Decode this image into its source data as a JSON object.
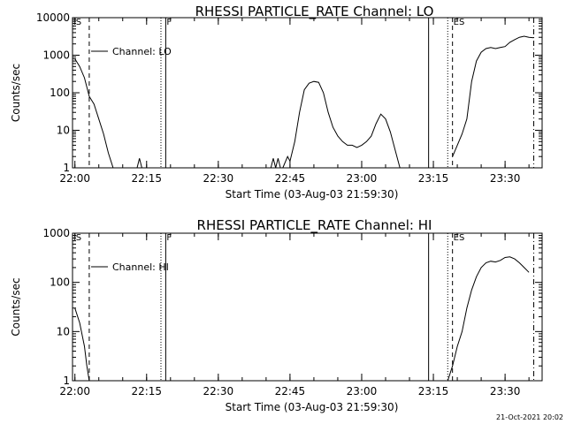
{
  "chart_data": [
    {
      "type": "line",
      "title": "RHESSI PARTICLE_RATE Channel: LO",
      "xlabel": "Start Time (03-Aug-03 21:59:30)",
      "ylabel": "Counts/sec",
      "yscale": "log",
      "ylim": [
        1,
        10000
      ],
      "xlim": [
        "21:59:30",
        "23:37:45"
      ],
      "xticks": [
        "22:00",
        "22:15",
        "22:30",
        "22:45",
        "23:00",
        "23:15",
        "23:30"
      ],
      "yticks": [
        "1",
        "10",
        "100",
        "1000",
        "10000"
      ],
      "legend": {
        "label": "Channel: LO",
        "placement": "top-left"
      },
      "events": [
        {
          "label": "S",
          "time": "22:00",
          "style": "none"
        },
        {
          "time": "22:03",
          "style": "dashed"
        },
        {
          "time": "22:18",
          "style": "dotted"
        },
        {
          "label": "F",
          "time": "22:19",
          "style": "solid"
        },
        {
          "time": "23:14",
          "style": "solid"
        },
        {
          "time": "23:18",
          "style": "dotted"
        },
        {
          "label": "ES",
          "time": "23:19",
          "style": "dashed"
        },
        {
          "time": "23:36",
          "style": "dashdot"
        }
      ],
      "series": [
        {
          "segments": [
            [
              [
                "22:00",
                800
              ],
              [
                "22:01",
                500
              ],
              [
                "22:02",
                250
              ],
              [
                "22:03",
                80
              ],
              [
                "22:04",
                50
              ],
              [
                "22:05",
                20
              ],
              [
                "22:06",
                8
              ],
              [
                "22:07",
                2.5
              ],
              [
                "22:08",
                1
              ]
            ],
            [
              [
                "22:13",
                1
              ],
              [
                "22:13:30",
                1.8
              ],
              [
                "22:14",
                1
              ]
            ],
            [
              [
                "22:41",
                1
              ],
              [
                "22:41:30",
                1.8
              ],
              [
                "22:42",
                1
              ],
              [
                "22:42:30",
                1.8
              ],
              [
                "22:43",
                1
              ]
            ],
            [
              [
                "22:43:30",
                1
              ],
              [
                "22:44:30",
                2
              ],
              [
                "22:45",
                1.5
              ],
              [
                "22:46",
                5
              ],
              [
                "22:47",
                30
              ],
              [
                "22:48",
                120
              ],
              [
                "22:49",
                180
              ],
              [
                "22:50",
                200
              ],
              [
                "22:51",
                190
              ],
              [
                "22:52",
                100
              ],
              [
                "22:53",
                30
              ],
              [
                "22:54",
                12
              ],
              [
                "22:55",
                7
              ],
              [
                "22:56",
                5
              ],
              [
                "22:57",
                4
              ],
              [
                "22:58",
                4
              ],
              [
                "22:59",
                3.5
              ],
              [
                "23:00",
                4
              ],
              [
                "23:01",
                5
              ],
              [
                "23:02",
                7
              ],
              [
                "23:03",
                15
              ],
              [
                "23:04",
                27
              ],
              [
                "23:05",
                20
              ],
              [
                "23:06",
                9
              ],
              [
                "23:07",
                3
              ],
              [
                "23:08",
                1
              ]
            ],
            [
              [
                "23:19",
                2
              ],
              [
                "23:20",
                4
              ],
              [
                "23:21",
                8
              ],
              [
                "23:22",
                20
              ],
              [
                "23:23",
                200
              ],
              [
                "23:24",
                700
              ],
              [
                "23:25",
                1200
              ],
              [
                "23:26",
                1500
              ],
              [
                "23:27",
                1600
              ],
              [
                "23:28",
                1500
              ],
              [
                "23:29",
                1600
              ],
              [
                "23:30",
                1700
              ],
              [
                "23:31",
                2200
              ],
              [
                "23:32",
                2600
              ],
              [
                "23:33",
                3000
              ],
              [
                "23:34",
                3200
              ],
              [
                "23:35",
                3000
              ],
              [
                "23:36",
                2900
              ]
            ]
          ]
        }
      ]
    },
    {
      "type": "line",
      "title": "RHESSI PARTICLE_RATE Channel: HI",
      "xlabel": "Start Time (03-Aug-03 21:59:30)",
      "ylabel": "Counts/sec",
      "yscale": "log",
      "ylim": [
        1,
        1000
      ],
      "xlim": [
        "21:59:30",
        "23:37:45"
      ],
      "xticks": [
        "22:00",
        "22:15",
        "22:30",
        "22:45",
        "23:00",
        "23:15",
        "23:30"
      ],
      "yticks": [
        "1",
        "10",
        "100",
        "1000"
      ],
      "legend": {
        "label": "Channel: HI",
        "placement": "top-left"
      },
      "events": [
        {
          "label": "S",
          "time": "22:00",
          "style": "none"
        },
        {
          "time": "22:03",
          "style": "dashed"
        },
        {
          "time": "22:18",
          "style": "dotted"
        },
        {
          "label": "F",
          "time": "22:19",
          "style": "solid"
        },
        {
          "time": "23:14",
          "style": "solid"
        },
        {
          "time": "23:18",
          "style": "dotted"
        },
        {
          "label": "ES",
          "time": "23:19",
          "style": "dashed"
        },
        {
          "time": "23:36",
          "style": "dashdot"
        }
      ],
      "series": [
        {
          "segments": [
            [
              [
                "22:00",
                30
              ],
              [
                "22:01",
                15
              ],
              [
                "22:02",
                5
              ],
              [
                "22:02:30",
                2
              ],
              [
                "22:03",
                1
              ]
            ],
            [
              [
                "23:18",
                1
              ],
              [
                "23:19",
                2
              ],
              [
                "23:20",
                5
              ],
              [
                "23:21",
                10
              ],
              [
                "23:22",
                30
              ],
              [
                "23:23",
                70
              ],
              [
                "23:24",
                130
              ],
              [
                "23:25",
                200
              ],
              [
                "23:26",
                250
              ],
              [
                "23:27",
                270
              ],
              [
                "23:28",
                260
              ],
              [
                "23:29",
                280
              ],
              [
                "23:30",
                320
              ],
              [
                "23:31",
                330
              ],
              [
                "23:32",
                300
              ],
              [
                "23:33",
                250
              ],
              [
                "23:34",
                200
              ],
              [
                "23:35",
                160
              ]
            ]
          ]
        }
      ]
    }
  ],
  "footer": {
    "stamp": "21-Oct-2021 20:02"
  }
}
